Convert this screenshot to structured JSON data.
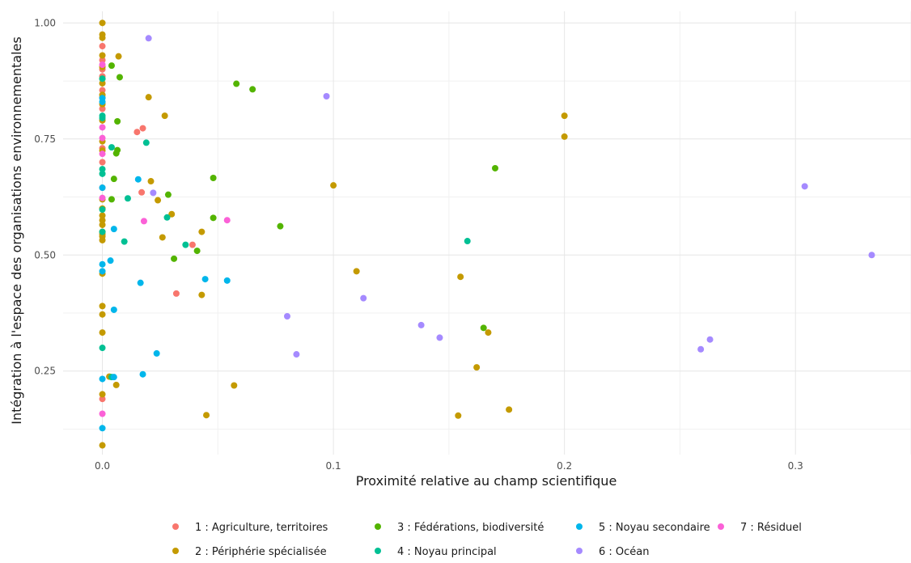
{
  "chart_data": {
    "type": "scatter",
    "title": "",
    "xlabel": "Proximité relative au champ scientifique",
    "ylabel": "Intégration à l'espace des organisations environnementales",
    "xlim": [
      -0.017,
      0.35
    ],
    "ylim": [
      0.07,
      1.025
    ],
    "x_ticks": [
      0.0,
      0.1,
      0.2,
      0.3
    ],
    "x_tick_labels": [
      "0.0",
      "0.1",
      "0.2",
      "0.3"
    ],
    "y_ticks": [
      0.25,
      0.5,
      0.75,
      1.0
    ],
    "y_tick_labels": [
      "0.25",
      "0.50",
      "0.75",
      "1.00"
    ],
    "grid": true,
    "legend_position": "bottom",
    "series": [
      {
        "name": "1 : Agriculture, territoires",
        "color": "#F8766D",
        "points": [
          [
            0,
            0.95
          ],
          [
            0,
            0.92
          ],
          [
            0,
            0.9
          ],
          [
            0,
            0.885
          ],
          [
            0,
            0.855
          ],
          [
            0,
            0.84
          ],
          [
            0,
            0.815
          ],
          [
            0,
            0.73
          ],
          [
            0,
            0.7
          ],
          [
            0,
            0.645
          ],
          [
            0,
            0.6
          ],
          [
            0,
            0.19
          ],
          [
            0.015,
            0.765
          ],
          [
            0.0175,
            0.773
          ],
          [
            0.017,
            0.635
          ],
          [
            0.039,
            0.522
          ],
          [
            0.032,
            0.417
          ]
        ]
      },
      {
        "name": "2 : Périphérie spécialisée",
        "color": "#C49A00",
        "points": [
          [
            0,
            1.0
          ],
          [
            0,
            0.975
          ],
          [
            0,
            0.968
          ],
          [
            0,
            0.93
          ],
          [
            0,
            0.905
          ],
          [
            0,
            0.88
          ],
          [
            0,
            0.87
          ],
          [
            0,
            0.845
          ],
          [
            0,
            0.825
          ],
          [
            0,
            0.79
          ],
          [
            0,
            0.745
          ],
          [
            0,
            0.725
          ],
          [
            0,
            0.62
          ],
          [
            0,
            0.6
          ],
          [
            0,
            0.585
          ],
          [
            0,
            0.575
          ],
          [
            0,
            0.565
          ],
          [
            0,
            0.55
          ],
          [
            0,
            0.545
          ],
          [
            0,
            0.54
          ],
          [
            0,
            0.532
          ],
          [
            0,
            0.46
          ],
          [
            0,
            0.39
          ],
          [
            0,
            0.372
          ],
          [
            0,
            0.333
          ],
          [
            0,
            0.2
          ],
          [
            0,
            0.09
          ],
          [
            0.007,
            0.928
          ],
          [
            0.02,
            0.84
          ],
          [
            0.027,
            0.8
          ],
          [
            0.021,
            0.659
          ],
          [
            0.024,
            0.618
          ],
          [
            0.03,
            0.588
          ],
          [
            0.026,
            0.538
          ],
          [
            0.043,
            0.55
          ],
          [
            0.043,
            0.414
          ],
          [
            0.045,
            0.155
          ],
          [
            0.057,
            0.219
          ],
          [
            0.006,
            0.22
          ],
          [
            0.003,
            0.238
          ],
          [
            0.1,
            0.65
          ],
          [
            0.11,
            0.465
          ],
          [
            0.155,
            0.453
          ],
          [
            0.167,
            0.333
          ],
          [
            0.162,
            0.258
          ],
          [
            0.154,
            0.154
          ],
          [
            0.176,
            0.167
          ],
          [
            0.2,
            0.8
          ],
          [
            0.2,
            0.755
          ]
        ]
      },
      {
        "name": "3 : Fédérations, biodiversité",
        "color": "#53B400",
        "points": [
          [
            0.004,
            0.908
          ],
          [
            0.0075,
            0.883
          ],
          [
            0.0065,
            0.788
          ],
          [
            0.0065,
            0.726
          ],
          [
            0.006,
            0.719
          ],
          [
            0.005,
            0.664
          ],
          [
            0.004,
            0.62
          ],
          [
            0.0285,
            0.63
          ],
          [
            0.031,
            0.492
          ],
          [
            0.041,
            0.509
          ],
          [
            0.048,
            0.666
          ],
          [
            0.048,
            0.58
          ],
          [
            0.058,
            0.869
          ],
          [
            0.065,
            0.857
          ],
          [
            0.077,
            0.562
          ],
          [
            0.17,
            0.687
          ],
          [
            0.165,
            0.343
          ]
        ]
      },
      {
        "name": "4 : Noyau principal",
        "color": "#00C094",
        "points": [
          [
            0,
            0.88
          ],
          [
            0,
            0.8
          ],
          [
            0,
            0.795
          ],
          [
            0,
            0.685
          ],
          [
            0,
            0.675
          ],
          [
            0,
            0.598
          ],
          [
            0,
            0.55
          ],
          [
            0,
            0.3
          ],
          [
            0.004,
            0.732
          ],
          [
            0.011,
            0.622
          ],
          [
            0.0095,
            0.529
          ],
          [
            0.004,
            0.237
          ],
          [
            0.019,
            0.742
          ],
          [
            0.028,
            0.581
          ],
          [
            0.036,
            0.522
          ],
          [
            0.158,
            0.53
          ]
        ]
      },
      {
        "name": "5 : Noyau secondaire",
        "color": "#00B6EB",
        "points": [
          [
            0,
            0.838
          ],
          [
            0,
            0.83
          ],
          [
            0,
            0.645
          ],
          [
            0,
            0.48
          ],
          [
            0,
            0.465
          ],
          [
            0,
            0.233
          ],
          [
            0,
            0.127
          ],
          [
            0.0035,
            0.488
          ],
          [
            0.005,
            0.556
          ],
          [
            0.005,
            0.382
          ],
          [
            0.005,
            0.237
          ],
          [
            0.0155,
            0.663
          ],
          [
            0.0165,
            0.44
          ],
          [
            0.0175,
            0.243
          ],
          [
            0.0235,
            0.288
          ],
          [
            0.0445,
            0.448
          ],
          [
            0.054,
            0.445
          ]
        ]
      },
      {
        "name": "6 : Océan",
        "color": "#A58AFF",
        "points": [
          [
            0.02,
            0.967
          ],
          [
            0.022,
            0.634
          ],
          [
            0.097,
            0.842
          ],
          [
            0.08,
            0.368
          ],
          [
            0.084,
            0.286
          ],
          [
            0.113,
            0.407
          ],
          [
            0.138,
            0.349
          ],
          [
            0.146,
            0.322
          ],
          [
            0.259,
            0.297
          ],
          [
            0.263,
            0.318
          ],
          [
            0.304,
            0.648
          ],
          [
            0.333,
            0.5
          ]
        ]
      },
      {
        "name": "7 : Résiduel",
        "color": "#FB61D7",
        "points": [
          [
            0,
            0.91
          ],
          [
            0,
            0.775
          ],
          [
            0,
            0.752
          ],
          [
            0,
            0.718
          ],
          [
            0,
            0.623
          ],
          [
            0,
            0.158
          ],
          [
            0.018,
            0.573
          ],
          [
            0.054,
            0.575
          ]
        ]
      }
    ]
  }
}
